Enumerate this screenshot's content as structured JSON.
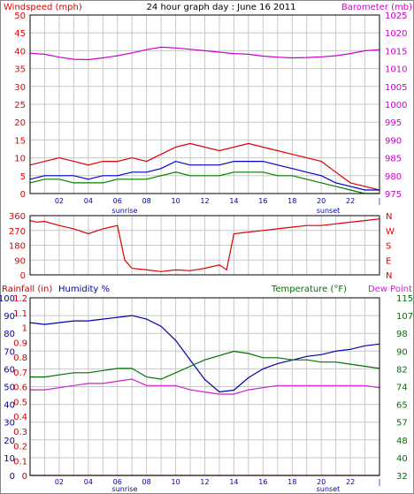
{
  "title": "24 hour graph day : June 16 2011",
  "colors": {
    "wind": "#e00000",
    "wind_avg": "#0000cc",
    "wind_low": "#008000",
    "baro": "#cc00cc",
    "humidity": "#0000aa",
    "temp": "#007000",
    "dew": "#cc22cc",
    "rain": "#cc0000",
    "grid": "#c8c8c8",
    "frame": "#000000"
  },
  "time_axis": {
    "ticks": [
      "02",
      "04",
      "06",
      "08",
      "10",
      "12",
      "14",
      "16",
      "18",
      "20",
      "22"
    ],
    "end_tick": "|",
    "sunrise_label": "sunrise",
    "sunset_label": "sunset"
  },
  "chart_data": [
    {
      "type": "line",
      "title": "24 hour graph day : June 16 2011",
      "ylabel_left": "Windspeed (mph)",
      "ylabel_right": "Barometer (mb)",
      "left_ticks": [
        "50",
        "45",
        "40",
        "35",
        "30",
        "25",
        "20",
        "15",
        "10",
        "5",
        "0"
      ],
      "right_ticks": [
        "1025",
        "1020",
        "1015",
        "1010",
        "1005",
        "1000",
        "995",
        "990",
        "985",
        "980",
        "975"
      ],
      "ylim_left": [
        0,
        50
      ],
      "ylim_right": [
        975,
        1025
      ],
      "grid": true,
      "series": [
        {
          "name": "",
          "axis": "left",
          "color_key": "wind",
          "x": [
            0,
            1,
            2,
            3,
            4,
            5,
            6,
            7,
            8,
            9,
            10,
            11,
            12,
            13,
            14,
            15,
            16,
            17,
            18,
            19,
            20,
            21,
            22,
            23,
            24
          ],
          "values": [
            8,
            9,
            10,
            9,
            8,
            9,
            9,
            10,
            9,
            11,
            13,
            14,
            13,
            12,
            13,
            14,
            13,
            12,
            11,
            10,
            9,
            6,
            3,
            2,
            1
          ]
        },
        {
          "name": "",
          "axis": "left",
          "color_key": "wind_avg",
          "x": [
            0,
            1,
            2,
            3,
            4,
            5,
            6,
            7,
            8,
            9,
            10,
            11,
            12,
            13,
            14,
            15,
            16,
            17,
            18,
            19,
            20,
            21,
            22,
            23,
            24
          ],
          "values": [
            4,
            5,
            5,
            5,
            4,
            5,
            5,
            6,
            6,
            7,
            9,
            8,
            8,
            8,
            9,
            9,
            9,
            8,
            7,
            6,
            5,
            3,
            2,
            1,
            1
          ]
        },
        {
          "name": "",
          "axis": "left",
          "color_key": "wind_low",
          "x": [
            0,
            1,
            2,
            3,
            4,
            5,
            6,
            7,
            8,
            9,
            10,
            11,
            12,
            13,
            14,
            15,
            16,
            17,
            18,
            19,
            20,
            21,
            22,
            23,
            24
          ],
          "values": [
            3,
            4,
            4,
            3,
            3,
            3,
            4,
            4,
            4,
            5,
            6,
            5,
            5,
            5,
            6,
            6,
            6,
            5,
            5,
            4,
            3,
            2,
            1,
            0,
            0
          ]
        },
        {
          "name": "",
          "axis": "right",
          "color_key": "baro",
          "x": [
            0,
            1,
            2,
            3,
            4,
            5,
            6,
            7,
            8,
            9,
            10,
            11,
            12,
            13,
            14,
            15,
            16,
            17,
            18,
            19,
            20,
            21,
            22,
            23,
            24
          ],
          "values": [
            1014.3,
            1014.0,
            1013.2,
            1012.6,
            1012.5,
            1013.0,
            1013.6,
            1014.4,
            1015.3,
            1016.0,
            1015.8,
            1015.4,
            1015.0,
            1014.6,
            1014.2,
            1014.0,
            1013.5,
            1013.2,
            1013.0,
            1013.1,
            1013.3,
            1013.6,
            1014.2,
            1015.0,
            1015.3
          ]
        }
      ]
    },
    {
      "type": "line",
      "ylabel_left_ticks": [
        "360",
        "270",
        "180",
        "90",
        "0"
      ],
      "ylabel_right_ticks": [
        "N",
        "W",
        "S",
        "E",
        "N"
      ],
      "ylim": [
        0,
        360
      ],
      "grid": true,
      "series": [
        {
          "name": "",
          "color_key": "wind",
          "x": [
            0,
            0.5,
            1,
            2,
            3,
            4,
            5,
            6,
            6.5,
            7,
            8,
            9,
            10,
            11,
            12,
            13,
            13.5,
            14,
            15,
            16,
            17,
            18,
            19,
            20,
            21,
            22,
            23,
            24
          ],
          "values": [
            330,
            320,
            325,
            300,
            280,
            250,
            280,
            300,
            90,
            40,
            30,
            20,
            30,
            25,
            40,
            60,
            30,
            250,
            260,
            270,
            280,
            290,
            300,
            300,
            310,
            320,
            330,
            340
          ]
        }
      ]
    },
    {
      "type": "line",
      "ylabel_rain": "Rainfall (in)",
      "ylabel_humidity": "Humidity %",
      "ylabel_temp": "Temperature (°F)",
      "ylabel_dew": "Dew Point",
      "humidity_ticks": [
        "100",
        "90",
        "80",
        "70",
        "60",
        "50",
        "40",
        "30",
        "20",
        "10",
        "0"
      ],
      "rain_ticks": [
        "1.2",
        "1.1",
        "1",
        "0.9",
        "0.8",
        "0.7",
        "0.6",
        "0.5",
        "0.4",
        "0.3",
        "0.2",
        "0.1",
        "0"
      ],
      "temp_ticks": [
        "115",
        "107",
        "98",
        "90",
        "82",
        "74",
        "65",
        "57",
        "48",
        "40",
        "32"
      ],
      "ylim_humidity": [
        0,
        100
      ],
      "ylim_rain": [
        0,
        1.2
      ],
      "ylim_temp": [
        32,
        115
      ],
      "grid": true,
      "series": [
        {
          "name": "",
          "axis": "humidity",
          "color_key": "humidity",
          "x": [
            0,
            1,
            2,
            3,
            4,
            5,
            6,
            7,
            8,
            9,
            10,
            11,
            12,
            13,
            14,
            15,
            16,
            17,
            18,
            19,
            20,
            21,
            22,
            23,
            24
          ],
          "values": [
            86,
            85,
            86,
            87,
            87,
            88,
            89,
            90,
            88,
            84,
            76,
            65,
            54,
            47,
            48,
            55,
            60,
            63,
            65,
            67,
            68,
            70,
            71,
            73,
            74
          ]
        },
        {
          "name": "",
          "axis": "temp",
          "color_key": "temp",
          "x": [
            0,
            1,
            2,
            3,
            4,
            5,
            6,
            7,
            8,
            9,
            10,
            11,
            12,
            13,
            14,
            15,
            16,
            17,
            18,
            19,
            20,
            21,
            22,
            23,
            24
          ],
          "values": [
            78,
            78,
            79,
            80,
            80,
            81,
            82,
            82,
            78,
            77,
            80,
            83,
            86,
            88,
            90,
            89,
            87,
            87,
            86,
            86,
            85,
            85,
            84,
            83,
            82
          ]
        },
        {
          "name": "",
          "axis": "temp",
          "color_key": "dew",
          "x": [
            0,
            1,
            2,
            3,
            4,
            5,
            6,
            7,
            8,
            9,
            10,
            11,
            12,
            13,
            14,
            15,
            16,
            17,
            18,
            19,
            20,
            21,
            22,
            23,
            24
          ],
          "values": [
            72,
            72,
            73,
            74,
            75,
            75,
            76,
            77,
            74,
            74,
            74,
            72,
            71,
            70,
            70,
            72,
            73,
            74,
            74,
            74,
            74,
            74,
            74,
            74,
            73
          ]
        },
        {
          "name": "",
          "axis": "rain",
          "color_key": "rain",
          "x": [
            0,
            24
          ],
          "values": [
            0,
            0
          ]
        }
      ]
    }
  ]
}
